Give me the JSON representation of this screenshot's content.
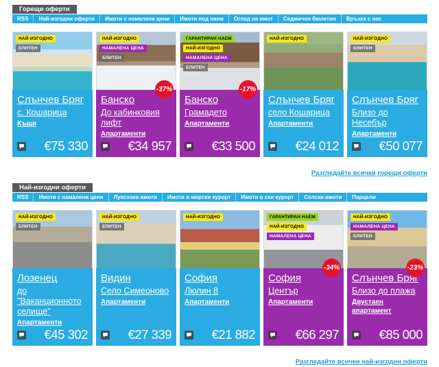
{
  "colors": {
    "accent_cyan": "#2aabe2",
    "accent_purple": "#9a2cab",
    "badge_yellow": "#f9e814",
    "badge_green": "#9ad615",
    "badge_gray": "#696969",
    "discount_red": "#e8112d",
    "tab_gray": "#59595b",
    "link_blue": "#1a9fd9"
  },
  "sections": [
    {
      "tab": "Горещи оферти",
      "nav": [
        "RSS",
        "Най-изгодни оферти",
        "Имоти с намалени цени",
        "Имоти под наем",
        "Оглед на имот",
        "Седмичен бюлетин",
        "Връзка с нас"
      ],
      "footer_link": "Разгледайте всички горещи оферти",
      "cards": [
        {
          "title": "Слънчев Бряг",
          "subtitle": "с. Кошарица",
          "category": "Къщи",
          "price": "€75 330",
          "theme": "cyan",
          "discount": null,
          "photo": "villa-with-pool",
          "badges": [
            {
              "label": "НАЙ-ИЗГОДНО",
              "type": "best"
            },
            {
              "label": "ЕЛИТЕН",
              "type": "elite"
            }
          ]
        },
        {
          "title": "Банско",
          "subtitle": "До кабинковия лифт",
          "category": "Апартаменти",
          "price": "€34 957",
          "theme": "purple",
          "discount": "-37%",
          "photo": "bansko-winter-complex",
          "badges": [
            {
              "label": "НАЙ-ИЗГОДНО",
              "type": "best"
            },
            {
              "label": "НАМАЛЕНА ЦЕНА",
              "type": "reduced"
            },
            {
              "label": "ЕЛИТЕН",
              "type": "elite"
            }
          ]
        },
        {
          "title": "Банско",
          "subtitle": "Грамадето",
          "category": "Апартаменти",
          "price": "€33 500",
          "theme": "purple",
          "discount": "-17%",
          "photo": "bansko-gramadeto-complex",
          "badges": [
            {
              "label": "ГАРАНТИРАН НАЕМ",
              "type": "rent"
            },
            {
              "label": "НАЙ-ИЗГОДНО",
              "type": "best"
            },
            {
              "label": "НАМАЛЕНА ЦЕНА",
              "type": "reduced"
            },
            {
              "label": "ЕЛИТЕН",
              "type": "elite"
            }
          ]
        },
        {
          "title": "Слънчев Бряг",
          "subtitle": "село Кошарица",
          "category": "Апартаменти",
          "price": "€24 012",
          "theme": "cyan",
          "discount": null,
          "photo": "sunny-beach-aerial-complex",
          "badges": [
            {
              "label": "НАЙ-ИЗГОДНО",
              "type": "best"
            }
          ]
        },
        {
          "title": "Слънчев Бряг",
          "subtitle": "Близо до Несебър",
          "category": "Апартаменти",
          "price": "€50 077",
          "theme": "cyan",
          "discount": null,
          "photo": "nesebar-pool-complex",
          "badges": [
            {
              "label": "НАЙ-ИЗГОДНО",
              "type": "best"
            },
            {
              "label": "ЕЛИТЕН",
              "type": "elite"
            }
          ]
        }
      ]
    },
    {
      "tab": "Най-изгодни оферти",
      "nav": [
        "RSS",
        "Имоти с намалени цени",
        "Луксозни имоти",
        "Имоти в морски курорт",
        "Имоти в ски курорт",
        "Селски имоти",
        "Парцели"
      ],
      "footer_link": "Разгледайте всички най-изгодни оферти",
      "cards": [
        {
          "title": "Лозенец",
          "subtitle": "до \"Ваканционното селище\"",
          "category": "Апартаменти",
          "price": "€45 302",
          "theme": "cyan",
          "discount": null,
          "photo": "lozenets-parking-complex",
          "badges": [
            {
              "label": "НАЙ-ИЗГОДНО",
              "type": "best"
            },
            {
              "label": "ЕЛИТЕН",
              "type": "elite"
            }
          ]
        },
        {
          "title": "Видин",
          "subtitle": "Село Симеоново",
          "category": "Апартаменти",
          "price": "€27 339",
          "theme": "cyan",
          "discount": null,
          "photo": "vidin-building-pool",
          "badges": [
            {
              "label": "НАЙ-ИЗГОДНО",
              "type": "best"
            },
            {
              "label": "ЕЛИТЕН",
              "type": "elite"
            }
          ]
        },
        {
          "title": "София",
          "subtitle": "Люлин 8",
          "category": "Апартаменти",
          "price": "€21 882",
          "theme": "cyan",
          "discount": null,
          "photo": "sofia-lyulin-building",
          "badges": [
            {
              "label": "НАЙ-ИЗГОДНО",
              "type": "best"
            }
          ]
        },
        {
          "title": "София",
          "subtitle": "Център",
          "category": "Апартаменти",
          "price": "€66 297",
          "theme": "purple",
          "discount": "-34%",
          "photo": "sofia-center-building",
          "badges": [
            {
              "label": "ГАРАНТИРАН НАЕМ",
              "type": "rent"
            },
            {
              "label": "НАЙ-ИЗГОДНО",
              "type": "best"
            },
            {
              "label": "НАМАЛЕНА ЦЕНА",
              "type": "reduced"
            }
          ]
        },
        {
          "title": "Слънчев Бряг",
          "subtitle": "Близо до плажа",
          "category": "Двустаен апартамент",
          "price": "€85 000",
          "theme": "purple",
          "discount": "-23%",
          "photo": "sunny-beach-street",
          "badges": [
            {
              "label": "НАЙ-ИЗГОДНО",
              "type": "best"
            },
            {
              "label": "НАМАЛЕНА ЦЕНА",
              "type": "reduced"
            },
            {
              "label": "ЕЛИТЕН",
              "type": "elite"
            }
          ]
        }
      ]
    }
  ]
}
